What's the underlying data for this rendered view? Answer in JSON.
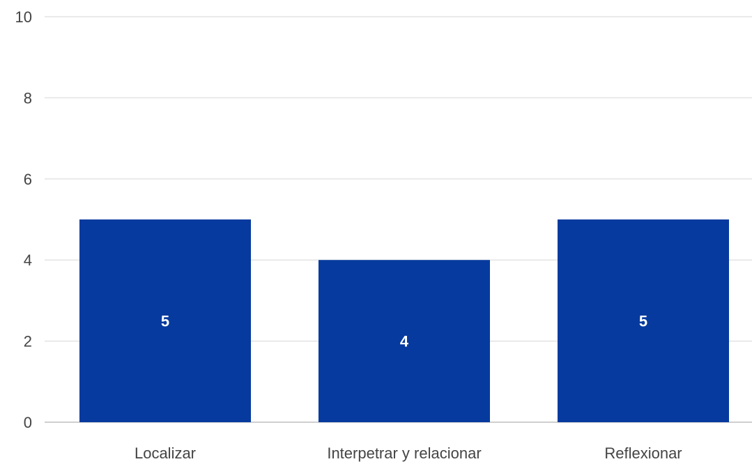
{
  "chart_data": {
    "type": "bar",
    "categories": [
      "Localizar",
      "Interpetrar y relacionar",
      "Reflexionar"
    ],
    "values": [
      5,
      4,
      5
    ],
    "data_labels": [
      "5",
      "4",
      "5"
    ],
    "y_ticks": [
      "0",
      "2",
      "4",
      "6",
      "8",
      "10"
    ],
    "ylim": [
      0,
      10
    ],
    "grid": true,
    "legend": "none",
    "bar_color": "#063a9e",
    "grid_color": "#e3e3e3",
    "axis_color": "#cfcfcf"
  }
}
